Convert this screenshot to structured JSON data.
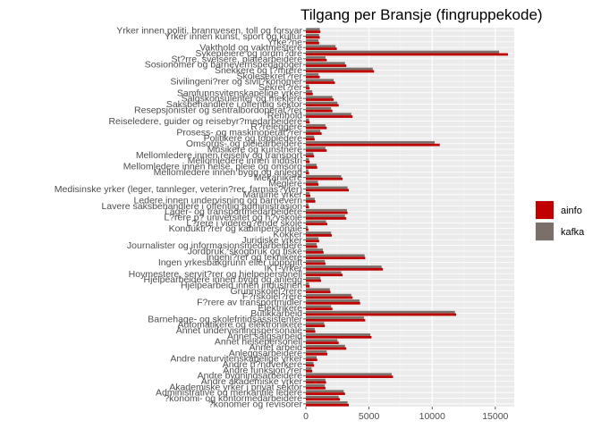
{
  "chart_data": {
    "type": "bar",
    "orientation": "horizontal",
    "title": "Tilgang per Bransje (fingruppekode)",
    "xlabel": "",
    "ylabel": "",
    "xlim": [
      0,
      16500
    ],
    "xticks": [
      0,
      5000,
      10000,
      15000
    ],
    "xtick_labels": [
      "0",
      "5000",
      "10000",
      "15000"
    ],
    "grid": true,
    "legend_position": "right",
    "colors": {
      "ainfo": "#c00000",
      "kafka": "#7a7069"
    },
    "categories": [
      "Yrker innen politi, brannvesen, toll og forsvar",
      "Yrker innen kunst, sport og kultur",
      "Yrke?ne",
      "Vakthold og vaktmestere",
      "Sykepleiere og jordm?dre",
      "St?rre, sveisere, platearbeidere",
      "Sosionomer og barnevernspedagoger",
      "Snekkere og t?mrere",
      "Skolesekret?rer",
      "Sivilingeni?rer og sivil?konomer",
      "Sekret?rer",
      "Samfunnsvitenskapelige yrker",
      "Salgskonsulenter og meklere",
      "Saksbehandlere i offentlig sektor",
      "Resepsjonister og sentralbordoperat?rer",
      "Renhold",
      "Reiseledere, guider og reisebyr?medarbeidere",
      "R?releggere",
      "Prosess- og maskinoperat?rer",
      "Politikere og toppledere",
      "Omsorgs- og pleiearbeidere",
      "Musikere og kunstnere",
      "Mellomledere innen reiseliv og transport",
      "Mellomledere innen industri",
      "Mellomledere innen helse, pleie og omsorg",
      "Mellomledere innen bygg og anlegg",
      "Mekanikere",
      "Meglere",
      "Medisinske yrker (leger, tannleger, veterin?rer, farmas?yter)",
      "Maritime yrker",
      "Ledere innen undervisning og barnevern",
      "Lavere saksbehandlere i offentlig administrasjon",
      "Lager- og transportmedarbeidere",
      "L?rere p? universitet og h?yskole",
      "L?rere i videreg?ende skole",
      "Konduktr?rer og kabinpersonale",
      "Kokker",
      "Juridiske yrker",
      "Journalister og informasjonsmedarbeidere",
      "Jordbruk, skogbruk og fiske",
      "Ingeni?rer og teknikere",
      "Ingen yrkesbakgrunn eller uoppgitt",
      "IKT-yrker",
      "Hoymestere, servit?rer og hjelpepersonell",
      "Hjelpearbeidere innen bygg og anlegg",
      "Hjelpearbeid innen industrien",
      "Grunnskolel?rere",
      "F?rskolel?rere",
      "F?rere av transportmidler",
      "Elektrikere",
      "Butikkarbeid",
      "Barnehage- og skolefritidsassistenter",
      "Automatikere og elektronikere",
      "Annet undervisningspersonale",
      "Annet salgsarbeid",
      "Annet helsepersonell",
      "Annet arbeid",
      "Anleggsarbeidere",
      "Andre naturvitenskapelige yrker",
      "Andre h?ndverkere",
      "Andre funksjon?rer",
      "Andre bygningsarbeidere",
      "Andre akademiske yrker",
      "Akademiske yrker i privat sektor",
      "Administrative og merkantile ledere",
      "?konomi- og kontormedarbeidere",
      "?konomer og revisorer"
    ],
    "series": [
      {
        "name": "ainfo",
        "values": [
          1150,
          1100,
          1050,
          2450,
          16000,
          1650,
          3200,
          5400,
          1100,
          2300,
          300,
          550,
          2200,
          2600,
          2100,
          3700,
          300,
          1650,
          1250,
          700,
          10600,
          1650,
          650,
          300,
          900,
          250,
          2900,
          1000,
          3400,
          350,
          750,
          250,
          3300,
          3200,
          1700,
          200,
          2050,
          1050,
          900,
          1400,
          4700,
          1550,
          6100,
          2900,
          1200,
          300,
          1950,
          3700,
          4300,
          2100,
          11900,
          4700,
          1500,
          750,
          5200,
          2600,
          3200,
          1700,
          900,
          650,
          500,
          6900,
          1600,
          1550,
          3100,
          2700,
          3400
        ]
      },
      {
        "name": "kafka",
        "values": [
          1100,
          1050,
          1000,
          2350,
          15300,
          1550,
          3100,
          5300,
          1000,
          2200,
          250,
          500,
          2100,
          2500,
          2000,
          3600,
          250,
          1550,
          1150,
          650,
          10200,
          1550,
          600,
          250,
          850,
          200,
          2800,
          950,
          3300,
          300,
          700,
          200,
          3250,
          3100,
          1600,
          150,
          2000,
          1000,
          850,
          1350,
          4650,
          1500,
          6000,
          2800,
          1150,
          250,
          1900,
          3600,
          4250,
          2000,
          11800,
          4600,
          1450,
          700,
          5100,
          2500,
          3100,
          1650,
          850,
          600,
          450,
          6800,
          1550,
          1500,
          3000,
          2600,
          3300
        ]
      }
    ]
  }
}
